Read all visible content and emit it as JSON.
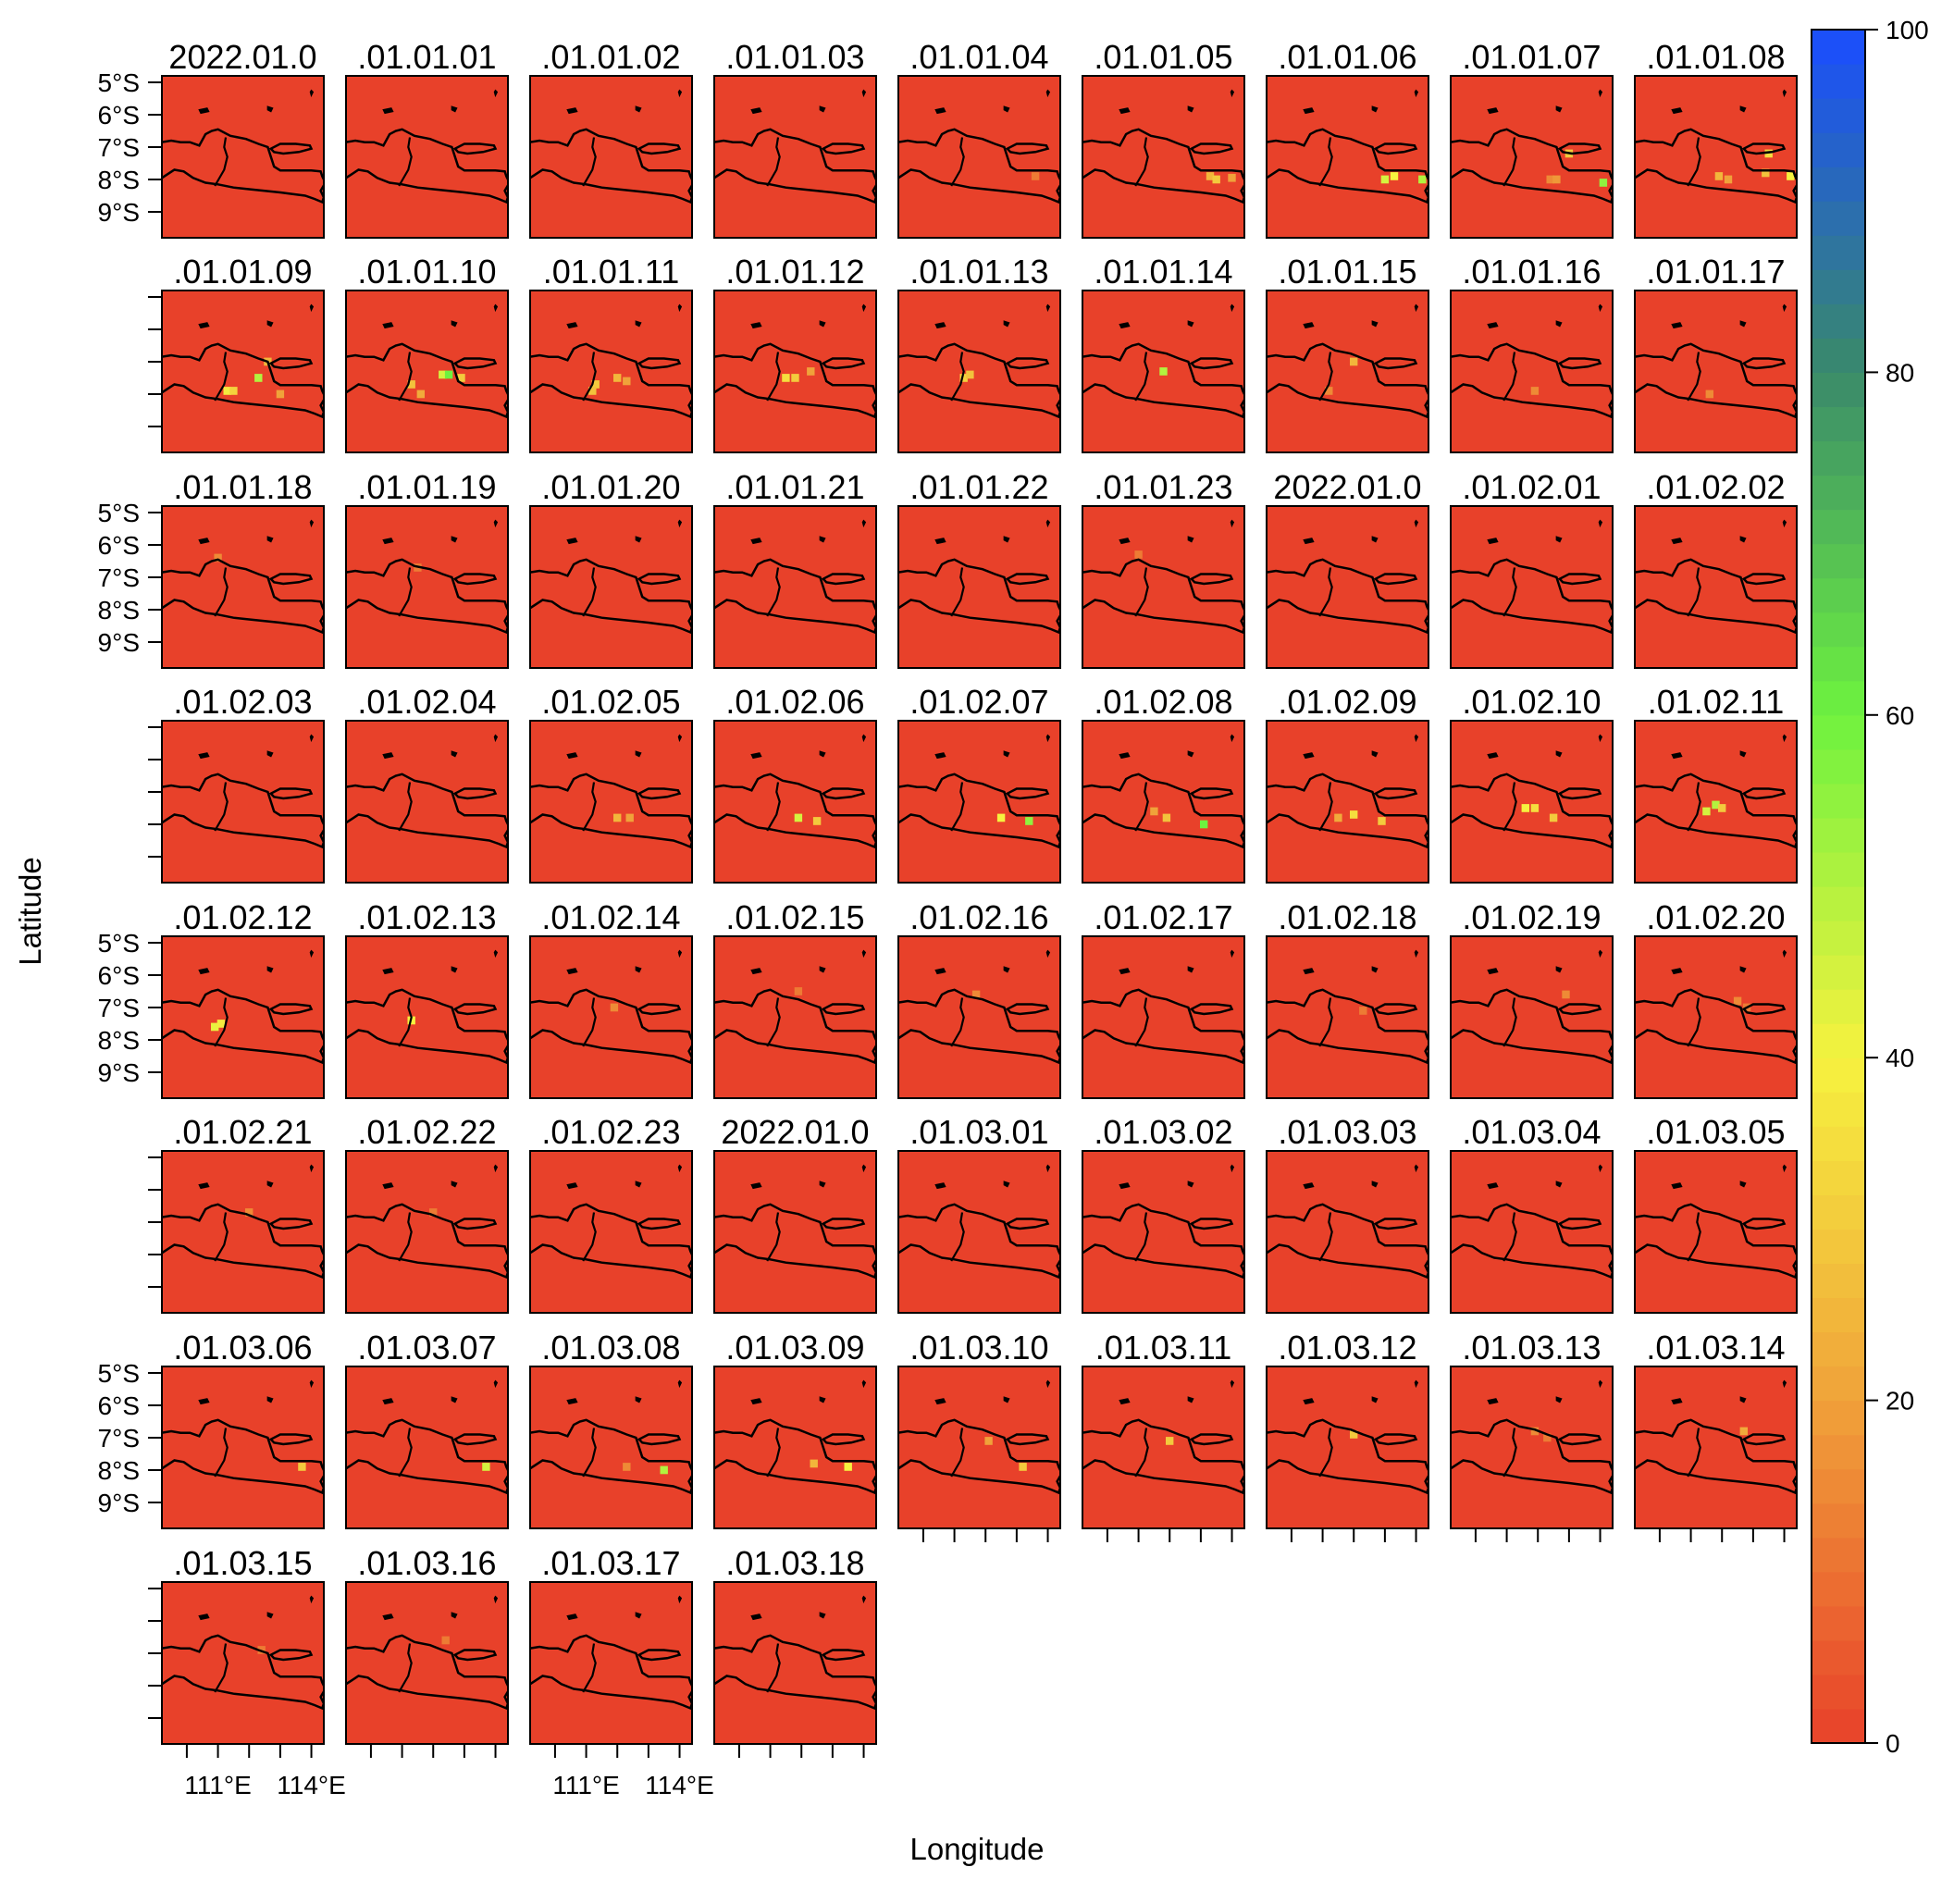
{
  "chart_data": {
    "type": "heatmap",
    "panel_labels": [
      "2022.01.0",
      ".01.01.01",
      ".01.01.02",
      ".01.01.03",
      ".01.01.04",
      ".01.01.05",
      ".01.01.06",
      ".01.01.07",
      ".01.01.08",
      ".01.01.09",
      ".01.01.10",
      ".01.01.11",
      ".01.01.12",
      ".01.01.13",
      ".01.01.14",
      ".01.01.15",
      ".01.01.16",
      ".01.01.17",
      ".01.01.18",
      ".01.01.19",
      ".01.01.20",
      ".01.01.21",
      ".01.01.22",
      ".01.01.23",
      "2022.01.0",
      ".01.02.01",
      ".01.02.02",
      ".01.02.03",
      ".01.02.04",
      ".01.02.05",
      ".01.02.06",
      ".01.02.07",
      ".01.02.08",
      ".01.02.09",
      ".01.02.10",
      ".01.02.11",
      ".01.02.12",
      ".01.02.13",
      ".01.02.14",
      ".01.02.15",
      ".01.02.16",
      ".01.02.17",
      ".01.02.18",
      ".01.02.19",
      ".01.02.20",
      ".01.02.21",
      ".01.02.22",
      ".01.02.23",
      "2022.01.0",
      ".01.03.01",
      ".01.03.02",
      ".01.03.03",
      ".01.03.04",
      ".01.03.05",
      ".01.03.06",
      ".01.03.07",
      ".01.03.08",
      ".01.03.09",
      ".01.03.10",
      ".01.03.11",
      ".01.03.12",
      ".01.03.13",
      ".01.03.14",
      ".01.03.15",
      ".01.03.16",
      ".01.03.17",
      ".01.03.18"
    ],
    "xlabel": "Longitude",
    "ylabel": "Latitude",
    "x_ticks": [
      110,
      111,
      112,
      113,
      114,
      115
    ],
    "x_tick_labels": [
      "111°E",
      "114°E"
    ],
    "x_tick_label_values": [
      111,
      114
    ],
    "y_ticks": [
      -5,
      -6,
      -7,
      -8,
      -9,
      -10
    ],
    "y_tick_labels": [
      "5°S",
      "6°S",
      "7°S",
      "8°S",
      "9°S"
    ],
    "y_tick_label_values": [
      -5,
      -6,
      -7,
      -8,
      -9
    ],
    "xlim": [
      109.2,
      114.4
    ],
    "ylim": [
      -9.8,
      -4.8
    ],
    "colorbar": {
      "range": [
        0,
        100
      ],
      "ticks": [
        0,
        20,
        40,
        60,
        80,
        100
      ],
      "colors": [
        "#e8412a",
        "#f0a23a",
        "#f6f23f",
        "#6ef23f",
        "#3a8a6a",
        "#1a4dff"
      ]
    },
    "background_value": 0,
    "background_color": "#e8412a",
    "cell_size_deg": 0.25,
    "hotspots": {
      "4": [
        [
          113.6,
          -7.9,
          12
        ]
      ],
      "5": [
        [
          113.3,
          -7.9,
          25
        ],
        [
          113.5,
          -8.0,
          30
        ],
        [
          114.0,
          -7.95,
          20
        ]
      ],
      "6": [
        [
          113.0,
          -8.0,
          45
        ],
        [
          113.3,
          -7.9,
          40
        ],
        [
          114.2,
          -8.0,
          50
        ]
      ],
      "7": [
        [
          112.4,
          -8.0,
          15
        ],
        [
          112.6,
          -8.0,
          18
        ],
        [
          113.0,
          -7.2,
          30
        ],
        [
          114.1,
          -8.1,
          55
        ]
      ],
      "8": [
        [
          111.9,
          -7.9,
          25
        ],
        [
          112.2,
          -8.0,
          20
        ],
        [
          113.4,
          -7.8,
          28
        ],
        [
          113.5,
          -7.2,
          35
        ],
        [
          114.2,
          -7.9,
          40
        ]
      ],
      "9": [
        [
          111.3,
          -7.9,
          38
        ],
        [
          111.5,
          -7.9,
          32
        ],
        [
          112.3,
          -7.5,
          50
        ],
        [
          112.6,
          -7.0,
          25
        ],
        [
          113.0,
          -8.0,
          20
        ]
      ],
      "10": [
        [
          111.3,
          -7.7,
          28
        ],
        [
          111.6,
          -8.0,
          22
        ],
        [
          112.3,
          -7.4,
          45
        ],
        [
          112.5,
          -7.4,
          60
        ],
        [
          112.9,
          -7.5,
          30
        ]
      ],
      "11": [
        [
          111.3,
          -7.7,
          30
        ],
        [
          111.2,
          -7.9,
          28
        ],
        [
          112.0,
          -7.5,
          25
        ],
        [
          112.3,
          -7.6,
          20
        ]
      ],
      "12": [
        [
          111.5,
          -7.5,
          35
        ],
        [
          111.8,
          -7.5,
          30
        ],
        [
          112.3,
          -7.3,
          20
        ]
      ],
      "13": [
        [
          111.3,
          -7.5,
          32
        ],
        [
          111.5,
          -7.4,
          28
        ]
      ],
      "14": [
        [
          111.8,
          -7.3,
          50
        ]
      ],
      "15": [
        [
          112.0,
          -7.0,
          25
        ],
        [
          111.2,
          -7.9,
          15
        ]
      ],
      "16": [
        [
          111.9,
          -7.9,
          15
        ]
      ],
      "17": [
        [
          111.6,
          -8.0,
          15
        ]
      ],
      "18": [
        [
          111.0,
          -6.4,
          15
        ]
      ],
      "19": [
        [
          111.5,
          -6.7,
          12
        ]
      ],
      "23": [
        [
          111.0,
          -6.3,
          12
        ]
      ],
      "29": [
        [
          112.0,
          -7.8,
          25
        ],
        [
          112.4,
          -7.8,
          20
        ]
      ],
      "30": [
        [
          111.9,
          -7.8,
          45
        ],
        [
          112.5,
          -7.9,
          30
        ]
      ],
      "31": [
        [
          112.5,
          -7.8,
          40
        ],
        [
          113.4,
          -7.9,
          55
        ]
      ],
      "32": [
        [
          111.5,
          -7.6,
          20
        ],
        [
          111.9,
          -7.8,
          28
        ],
        [
          113.1,
          -8.0,
          60
        ]
      ],
      "33": [
        [
          111.5,
          -7.8,
          22
        ],
        [
          112.0,
          -7.7,
          35
        ],
        [
          112.9,
          -7.9,
          30
        ]
      ],
      "34": [
        [
          111.6,
          -7.5,
          40
        ],
        [
          111.9,
          -7.5,
          35
        ],
        [
          112.5,
          -7.8,
          30
        ]
      ],
      "35": [
        [
          111.5,
          -7.6,
          45
        ],
        [
          111.8,
          -7.4,
          50
        ],
        [
          112.0,
          -7.5,
          30
        ]
      ],
      "36": [
        [
          110.9,
          -7.6,
          42
        ],
        [
          111.1,
          -7.5,
          38
        ]
      ],
      "37": [
        [
          111.3,
          -7.4,
          40
        ]
      ],
      "38": [
        [
          111.9,
          -7.0,
          15
        ]
      ],
      "39": [
        [
          111.9,
          -6.5,
          12
        ]
      ],
      "40": [
        [
          111.7,
          -6.6,
          15
        ]
      ],
      "42": [
        [
          112.3,
          -7.1,
          12
        ]
      ],
      "43": [
        [
          112.9,
          -6.6,
          15
        ]
      ],
      "44": [
        [
          112.5,
          -6.8,
          15
        ],
        [
          112.8,
          -7.0,
          12
        ]
      ],
      "45": [
        [
          112.0,
          -6.7,
          15
        ]
      ],
      "46": [
        [
          112.0,
          -6.7,
          12
        ]
      ],
      "54": [
        [
          113.7,
          -7.9,
          30
        ]
      ],
      "55": [
        [
          113.7,
          -7.9,
          45
        ]
      ],
      "56": [
        [
          113.5,
          -8.0,
          50
        ],
        [
          112.3,
          -7.9,
          15
        ]
      ],
      "57": [
        [
          112.4,
          -7.8,
          25
        ],
        [
          113.5,
          -7.9,
          40
        ]
      ],
      "58": [
        [
          112.1,
          -7.1,
          20
        ],
        [
          113.2,
          -7.9,
          30
        ]
      ],
      "59": [
        [
          112.0,
          -7.1,
          30
        ]
      ],
      "60": [
        [
          112.0,
          -6.9,
          30
        ]
      ],
      "61": [
        [
          111.9,
          -6.8,
          15
        ],
        [
          112.3,
          -7.0,
          12
        ]
      ],
      "62": [
        [
          112.7,
          -6.8,
          22
        ]
      ],
      "63": [
        [
          112.4,
          -6.9,
          12
        ]
      ],
      "64": [
        [
          112.4,
          -6.6,
          12
        ]
      ]
    }
  }
}
